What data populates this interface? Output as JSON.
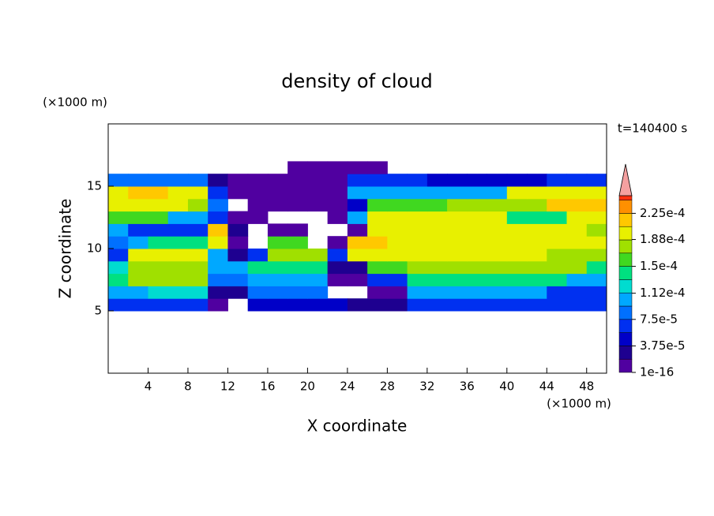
{
  "chart_data": {
    "type": "heatmap",
    "title": "density of cloud",
    "annotation": "t=140400 s",
    "x_label": "X coordinate",
    "y_label": "Z coordinate",
    "x_unit_label": "(×1000 m)",
    "y_unit_label": "(×1000 m)",
    "xlim": [
      0,
      50
    ],
    "ylim": [
      0,
      20
    ],
    "xticks": [
      4,
      8,
      12,
      16,
      20,
      24,
      28,
      32,
      36,
      40,
      44,
      48
    ],
    "yticks": [
      5,
      10,
      15
    ],
    "x": [
      1,
      3,
      5,
      7,
      9,
      11,
      13,
      15,
      17,
      19,
      21,
      23,
      25,
      27,
      29,
      31,
      33,
      35,
      37,
      39,
      41,
      43,
      45,
      47,
      49
    ],
    "y": [
      5.5,
      6.5,
      7.5,
      8.5,
      9.5,
      10.5,
      11.5,
      12.5,
      13.5,
      14.5,
      15.5,
      16.5
    ],
    "z": [
      [
        6e-05,
        6e-05,
        6e-05,
        6e-05,
        6e-05,
        1e-05,
        null,
        4e-05,
        4e-05,
        4e-05,
        4e-05,
        4e-05,
        2e-05,
        2e-05,
        2e-05,
        6e-05,
        6e-05,
        6e-05,
        6e-05,
        6e-05,
        6e-05,
        6e-05,
        6e-05,
        6e-05,
        6e-05
      ],
      [
        0.0001,
        0.0001,
        0.00013,
        0.00013,
        0.00013,
        3e-05,
        3e-05,
        8e-05,
        8e-05,
        8e-05,
        8e-05,
        null,
        null,
        1e-05,
        1e-05,
        0.00011,
        0.00011,
        0.00011,
        0.00011,
        0.00011,
        0.00011,
        0.00011,
        7e-05,
        7e-05,
        7e-05
      ],
      [
        0.00014,
        0.00017,
        0.00017,
        0.00017,
        0.00017,
        9e-05,
        9e-05,
        0.0001,
        0.0001,
        0.0001,
        0.0001,
        1e-05,
        1e-05,
        6e-05,
        6e-05,
        0.00014,
        0.00014,
        0.00014,
        0.00014,
        0.00014,
        0.00014,
        0.00014,
        0.00014,
        0.00011,
        0.00011
      ],
      [
        0.00013,
        0.00018,
        0.00018,
        0.00018,
        0.00018,
        0.0001,
        0.0001,
        0.00014,
        0.00014,
        0.00014,
        0.00014,
        2e-05,
        2e-05,
        0.00016,
        0.00016,
        0.00017,
        0.00017,
        0.00017,
        0.00017,
        0.00017,
        0.00017,
        0.00017,
        0.00017,
        0.00017,
        0.00014
      ],
      [
        7e-05,
        0.00019,
        0.00019,
        0.00019,
        0.00019,
        0.00011,
        3e-05,
        6e-05,
        0.00017,
        0.00017,
        0.00017,
        6e-05,
        0.00019,
        0.00019,
        0.00019,
        0.00019,
        0.00019,
        0.00019,
        0.00019,
        0.00019,
        0.00019,
        0.00019,
        0.00018,
        0.00018,
        0.00018
      ],
      [
        9e-05,
        0.00011,
        0.00014,
        0.00014,
        0.00014,
        0.0002,
        1e-05,
        null,
        0.00015,
        0.00015,
        null,
        1e-05,
        0.00021,
        0.00021,
        0.0002,
        0.0002,
        0.0002,
        0.0002,
        0.0002,
        0.0002,
        0.0002,
        0.0002,
        0.00019,
        0.00019,
        0.00019
      ],
      [
        0.0001,
        7e-05,
        7e-05,
        7e-05,
        7e-05,
        0.00022,
        3e-05,
        null,
        1e-05,
        1e-05,
        null,
        null,
        1e-05,
        0.0002,
        0.0002,
        0.0002,
        0.0002,
        0.0002,
        0.0002,
        0.0002,
        0.0002,
        0.0002,
        0.0002,
        0.0002,
        0.00017
      ],
      [
        0.00015,
        0.00015,
        0.00015,
        0.00011,
        0.00011,
        6e-05,
        1e-05,
        1e-05,
        null,
        null,
        null,
        1e-05,
        0.0001,
        0.0002,
        0.0002,
        0.0002,
        0.0002,
        0.0002,
        0.0002,
        0.0002,
        0.00014,
        0.00014,
        0.00014,
        0.0002,
        0.0002
      ],
      [
        0.0002,
        0.0002,
        0.0002,
        0.0002,
        0.00017,
        9e-05,
        null,
        1e-05,
        1e-05,
        1e-05,
        1e-05,
        1e-05,
        5e-05,
        0.00015,
        0.00015,
        0.00015,
        0.00015,
        0.00018,
        0.00018,
        0.00018,
        0.00017,
        0.00017,
        0.00021,
        0.00021,
        0.00021
      ],
      [
        0.0002,
        0.00022,
        0.00022,
        0.00019,
        0.00019,
        6e-05,
        1e-05,
        1e-05,
        1e-05,
        1e-05,
        1e-05,
        1e-05,
        0.00011,
        0.00011,
        0.0001,
        0.0001,
        0.0001,
        0.0001,
        0.0001,
        0.0001,
        0.0002,
        0.0002,
        0.0002,
        0.0002,
        0.0002
      ],
      [
        9e-05,
        9e-05,
        9e-05,
        9e-05,
        9e-05,
        3e-05,
        1e-05,
        1e-05,
        1e-05,
        1e-05,
        1e-05,
        1e-05,
        6e-05,
        6e-05,
        6e-05,
        6e-05,
        5e-05,
        5e-05,
        5e-05,
        5e-05,
        5e-05,
        5e-05,
        6e-05,
        6e-05,
        6e-05
      ],
      [
        null,
        null,
        null,
        null,
        null,
        null,
        null,
        null,
        null,
        1e-05,
        1e-05,
        1e-05,
        1e-05,
        1e-05,
        null,
        null,
        null,
        null,
        null,
        null,
        null,
        null,
        null,
        null,
        null
      ]
    ],
    "zlim": [
      1e-16,
      0.00025
    ],
    "levels": [
      1e-16,
      1.875e-05,
      3.75e-05,
      5.625e-05,
      7.5e-05,
      9.375e-05,
      0.0001125,
      0.00013125,
      0.00015,
      0.00016875,
      0.0001875,
      0.00020625,
      0.000225,
      0.00024375
    ],
    "colors": [
      "#5000a0",
      "#1e0090",
      "#0000c8",
      "#0030f0",
      "#0070ff",
      "#00a8ff",
      "#00dcd0",
      "#00e080",
      "#40d820",
      "#a0e000",
      "#e8f000",
      "#ffc800",
      "#ff9000",
      "#ff3010"
    ],
    "overflow_color": "#f4a0a0",
    "colorbar_ticks": [
      {
        "value": 1e-16,
        "label": "1e-16"
      },
      {
        "value": 3.75e-05,
        "label": "3.75e-5"
      },
      {
        "value": 7.5e-05,
        "label": "7.5e-5"
      },
      {
        "value": 0.000112,
        "label": "1.12e-4"
      },
      {
        "value": 0.00015,
        "label": "1.5e-4"
      },
      {
        "value": 0.000188,
        "label": "1.88e-4"
      },
      {
        "value": 0.000225,
        "label": "2.25e-4"
      }
    ]
  }
}
